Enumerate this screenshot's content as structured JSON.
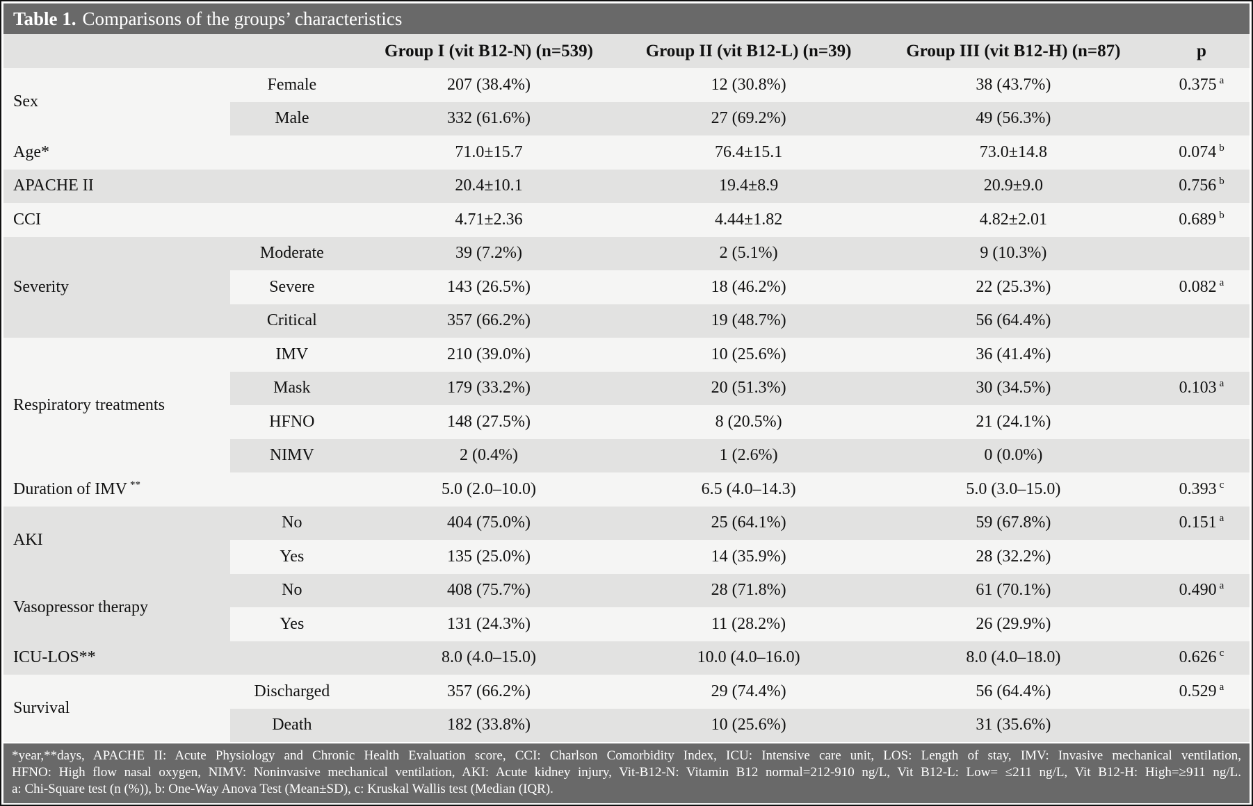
{
  "title": {
    "prefix": "Table 1.",
    "text": "Comparisons of the groups’ characteristics"
  },
  "header": {
    "group1": "Group I (vit B12-N) (n=539)",
    "group2": "Group II (vit B12-L) (n=39)",
    "group3": "Group III (vit B12-H) (n=87)",
    "p": "p"
  },
  "rows": [
    {
      "section": "Sex",
      "sub": "Female",
      "g1": "207 (38.4%)",
      "g2": "12 (30.8%)",
      "g3": "38 (43.7%)",
      "p": "0.375",
      "p_sup": "a"
    },
    {
      "sub": "Male",
      "g1": "332 (61.6%)",
      "g2": "27 (69.2%)",
      "g3": "49 (56.3%)"
    },
    {
      "label": "Age*",
      "g1": "71.0±15.7",
      "g2": "76.4±15.1",
      "g3": "73.0±14.8",
      "p": "0.074",
      "p_sup": "b"
    },
    {
      "label": "APACHE II",
      "g1": "20.4±10.1",
      "g2": "19.4±8.9",
      "g3": "20.9±9.0",
      "p": "0.756",
      "p_sup": "b"
    },
    {
      "label": "CCI",
      "g1": "4.71±2.36",
      "g2": "4.44±1.82",
      "g3": "4.82±2.01",
      "p": "0.689",
      "p_sup": "b"
    },
    {
      "section": "Severity",
      "sub": "Moderate",
      "g1": "39 (7.2%)",
      "g2": "2 (5.1%)",
      "g3": "9 (10.3%)"
    },
    {
      "sub": "Severe",
      "g1": "143 (26.5%)",
      "g2": "18 (46.2%)",
      "g3": "22 (25.3%)",
      "p": "0.082",
      "p_sup": "a"
    },
    {
      "sub": "Critical",
      "g1": "357 (66.2%)",
      "g2": "19 (48.7%)",
      "g3": "56 (64.4%)"
    },
    {
      "section": "Respiratory treatments",
      "sub": "IMV",
      "g1": "210 (39.0%)",
      "g2": "10 (25.6%)",
      "g3": "36 (41.4%)"
    },
    {
      "sub": "Mask",
      "g1": "179 (33.2%)",
      "g2": "20 (51.3%)",
      "g3": "30 (34.5%)",
      "p": "0.103",
      "p_sup": "a"
    },
    {
      "sub": "HFNO",
      "g1": "148 (27.5%)",
      "g2": "8 (20.5%)",
      "g3": "21 (24.1%)"
    },
    {
      "sub": "NIMV",
      "g1": "2 (0.4%)",
      "g2": "1 (2.6%)",
      "g3": "0 (0.0%)"
    },
    {
      "label": "Duration of IMV",
      "label_sup": "**",
      "g1": "5.0 (2.0–10.0)",
      "g2": "6.5 (4.0–14.3)",
      "g3": "5.0 (3.0–15.0)",
      "p": "0.393",
      "p_sup": "c"
    },
    {
      "section": "AKI",
      "sub": "No",
      "g1": "404 (75.0%)",
      "g2": "25 (64.1%)",
      "g3": "59 (67.8%)",
      "p": "0.151",
      "p_sup": "a"
    },
    {
      "sub": "Yes",
      "g1": "135 (25.0%)",
      "g2": "14 (35.9%)",
      "g3": "28 (32.2%)"
    },
    {
      "section": "Vasopressor therapy",
      "sub": "No",
      "g1": "408 (75.7%)",
      "g2": "28 (71.8%)",
      "g3": "61 (70.1%)",
      "p": "0.490",
      "p_sup": "a"
    },
    {
      "sub": "Yes",
      "g1": "131 (24.3%)",
      "g2": "11 (28.2%)",
      "g3": "26 (29.9%)"
    },
    {
      "label": "ICU-LOS**",
      "g1": "8.0 (4.0–15.0)",
      "g2": "10.0 (4.0–16.0)",
      "g3": "8.0 (4.0–18.0)",
      "p": "0.626",
      "p_sup": "c"
    },
    {
      "section": "Survival",
      "sub": "Discharged",
      "g1": "357 (66.2%)",
      "g2": "29 (74.4%)",
      "g3": "56 (64.4%)",
      "p": "0.529",
      "p_sup": "a"
    },
    {
      "sub": "Death",
      "g1": "182 (33.8%)",
      "g2": "10 (25.6%)",
      "g3": "31 (35.6%)"
    }
  ],
  "footnotes": {
    "line1": "*year,**days, APACHE II: Acute Physiology and Chronic Health Evaluation score, CCI: Charlson Comorbidity Index, ICU: Intensive care unit, LOS: Length of stay, IMV: Invasive mechanical ventilation,",
    "line2": "HFNO: High flow nasal oxygen, NIMV: Noninvasive mechanical ventilation, AKI: Acute kidney injury, Vit-B12-N: Vitamin B12 normal=212-910 ng/L, Vit B12-L: Low= ≤211 ng/L, Vit B12-H: High=≥911 ng/L.",
    "line3": "a: Chi-Square test (n (%)), b: One-Way Anova Test (Mean±SD), c: Kruskal Wallis test (Median (IQR)."
  },
  "colors": {
    "band": "#696969",
    "row_light": "#f5f5f4",
    "row_dark": "#e2e2e1",
    "header_bg": "#e2e2e1",
    "text_on_band": "#ffffff"
  }
}
